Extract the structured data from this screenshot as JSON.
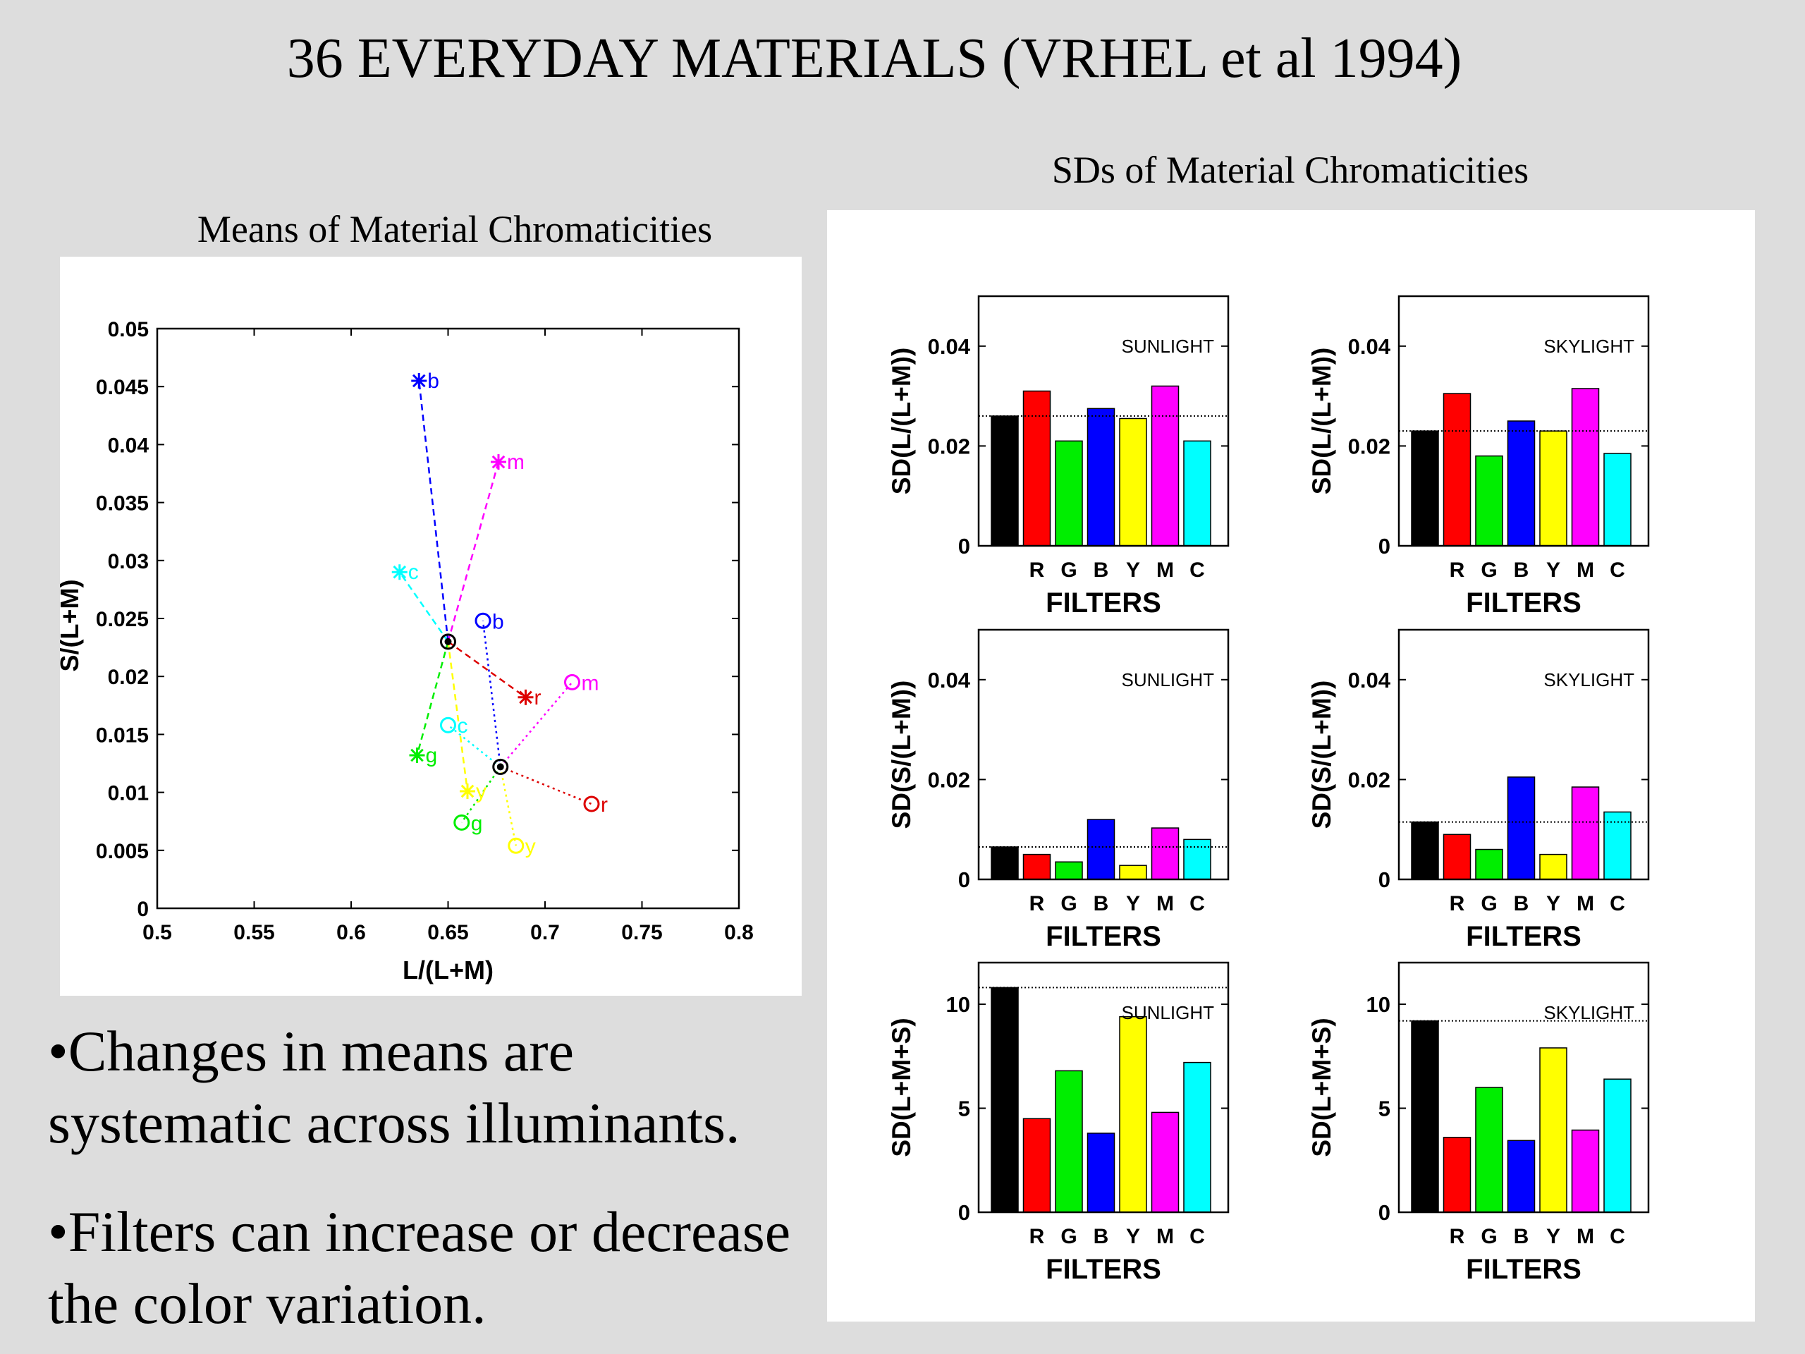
{
  "slide": {
    "title": "36 EVERYDAY MATERIALS (VRHEL et al 1994)",
    "bullets": [
      "•Changes in means are systematic across illuminants.",
      "•Filters can increase or decrease the color variation."
    ]
  },
  "left_panel": {
    "title": "Means of Material Chromaticities"
  },
  "right_panel": {
    "title": "SDs of Material Chromaticities"
  },
  "colors": {
    "R": "#ff0000",
    "G": "#00ee00",
    "B": "#0000ff",
    "Y": "#ffff00",
    "M": "#ff00ff",
    "C": "#00ffff",
    "K": "#000000",
    "r_line": "#dd0000"
  },
  "chart_data": [
    {
      "type": "scatter",
      "title": "Means of Material Chromaticities",
      "xlabel": "L/(L+M)",
      "ylabel": "S/(L+M)",
      "xlim": [
        0.5,
        0.8
      ],
      "ylim": [
        0,
        0.05
      ],
      "xticks": [
        "0.5",
        "0.55",
        "0.6",
        "0.65",
        "0.7",
        "0.75",
        "0.8"
      ],
      "yticks": [
        "0",
        "0.005",
        "0.01",
        "0.015",
        "0.02",
        "0.025",
        "0.03",
        "0.035",
        "0.04",
        "0.045",
        "0.05"
      ],
      "centers": [
        {
          "name": "sunlight",
          "x": 0.65,
          "y": 0.023
        },
        {
          "name": "skylight",
          "x": 0.677,
          "y": 0.0122
        }
      ],
      "points": [
        {
          "label": "b",
          "marker": "star",
          "color": "#0000ff",
          "x": 0.635,
          "y": 0.0455,
          "center": 0,
          "dash": "dashed"
        },
        {
          "label": "m",
          "marker": "star",
          "color": "#ff00ff",
          "x": 0.676,
          "y": 0.0385,
          "center": 0,
          "dash": "dashed"
        },
        {
          "label": "c",
          "marker": "star",
          "color": "#00ffff",
          "x": 0.625,
          "y": 0.029,
          "center": 0,
          "dash": "dashed"
        },
        {
          "label": "r",
          "marker": "star",
          "color": "#dd0000",
          "x": 0.69,
          "y": 0.0182,
          "center": 0,
          "dash": "dashed"
        },
        {
          "label": "g",
          "marker": "star",
          "color": "#00ee00",
          "x": 0.634,
          "y": 0.0132,
          "center": 0,
          "dash": "dashed"
        },
        {
          "label": "y",
          "marker": "star",
          "color": "#ffff00",
          "x": 0.66,
          "y": 0.0101,
          "center": 0,
          "dash": "dashed"
        },
        {
          "label": "b",
          "marker": "circle",
          "color": "#0000ff",
          "x": 0.668,
          "y": 0.0248,
          "center": 1,
          "dash": "dotted"
        },
        {
          "label": "m",
          "marker": "circle",
          "color": "#ff00ff",
          "x": 0.714,
          "y": 0.0195,
          "center": 1,
          "dash": "dotted"
        },
        {
          "label": "c",
          "marker": "circle",
          "color": "#00ffff",
          "x": 0.65,
          "y": 0.0158,
          "center": 1,
          "dash": "dotted"
        },
        {
          "label": "r",
          "marker": "circle",
          "color": "#dd0000",
          "x": 0.724,
          "y": 0.009,
          "center": 1,
          "dash": "dotted"
        },
        {
          "label": "g",
          "marker": "circle",
          "color": "#00ee00",
          "x": 0.657,
          "y": 0.0074,
          "center": 1,
          "dash": "dotted"
        },
        {
          "label": "y",
          "marker": "circle",
          "color": "#ffff00",
          "x": 0.685,
          "y": 0.0054,
          "center": 1,
          "dash": "dotted"
        }
      ]
    },
    {
      "type": "bar",
      "annotation": "SUNLIGHT",
      "ylabel": "SD(L/(L+M))",
      "xlabel": "FILTERS",
      "categories": [
        "",
        "R",
        "G",
        "B",
        "Y",
        "M",
        "C"
      ],
      "values": [
        0.026,
        0.031,
        0.021,
        0.0275,
        0.0255,
        0.032,
        0.021
      ],
      "colors": [
        "#000000",
        "#ff0000",
        "#00ee00",
        "#0000ff",
        "#ffff00",
        "#ff00ff",
        "#00ffff"
      ],
      "ylim": [
        0,
        0.05
      ],
      "yticks": [
        0,
        0.02,
        0.04
      ],
      "ytick_labels": [
        "0",
        "0.02",
        "0.04"
      ],
      "reference": 0.026
    },
    {
      "type": "bar",
      "annotation": "SKYLIGHT",
      "ylabel": "SD(L/(L+M))",
      "xlabel": "FILTERS",
      "categories": [
        "",
        "R",
        "G",
        "B",
        "Y",
        "M",
        "C"
      ],
      "values": [
        0.023,
        0.0305,
        0.018,
        0.025,
        0.023,
        0.0315,
        0.0185
      ],
      "colors": [
        "#000000",
        "#ff0000",
        "#00ee00",
        "#0000ff",
        "#ffff00",
        "#ff00ff",
        "#00ffff"
      ],
      "ylim": [
        0,
        0.05
      ],
      "yticks": [
        0,
        0.02,
        0.04
      ],
      "ytick_labels": [
        "0",
        "0.02",
        "0.04"
      ],
      "reference": 0.023
    },
    {
      "type": "bar",
      "annotation": "SUNLIGHT",
      "ylabel": "SD(S/(L+M))",
      "xlabel": "FILTERS",
      "categories": [
        "",
        "R",
        "G",
        "B",
        "Y",
        "M",
        "C"
      ],
      "values": [
        0.0065,
        0.005,
        0.0035,
        0.012,
        0.0028,
        0.0103,
        0.008
      ],
      "colors": [
        "#000000",
        "#ff0000",
        "#00ee00",
        "#0000ff",
        "#ffff00",
        "#ff00ff",
        "#00ffff"
      ],
      "ylim": [
        0,
        0.05
      ],
      "yticks": [
        0,
        0.02,
        0.04
      ],
      "ytick_labels": [
        "0",
        "0.02",
        "0.04"
      ],
      "reference": 0.0065
    },
    {
      "type": "bar",
      "annotation": "SKYLIGHT",
      "ylabel": "SD(S/(L+M))",
      "xlabel": "FILTERS",
      "categories": [
        "",
        "R",
        "G",
        "B",
        "Y",
        "M",
        "C"
      ],
      "values": [
        0.0115,
        0.009,
        0.006,
        0.0205,
        0.005,
        0.0185,
        0.0135
      ],
      "colors": [
        "#000000",
        "#ff0000",
        "#00ee00",
        "#0000ff",
        "#ffff00",
        "#ff00ff",
        "#00ffff"
      ],
      "ylim": [
        0,
        0.05
      ],
      "yticks": [
        0,
        0.02,
        0.04
      ],
      "ytick_labels": [
        "0",
        "0.02",
        "0.04"
      ],
      "reference": 0.0115
    },
    {
      "type": "bar",
      "annotation": "SUNLIGHT",
      "ylabel": "SD(L+M+S)",
      "xlabel": "FILTERS",
      "categories": [
        "",
        "R",
        "G",
        "B",
        "Y",
        "M",
        "C"
      ],
      "values": [
        10.8,
        4.5,
        6.8,
        3.8,
        9.4,
        4.8,
        7.2
      ],
      "colors": [
        "#000000",
        "#ff0000",
        "#00ee00",
        "#0000ff",
        "#ffff00",
        "#ff00ff",
        "#00ffff"
      ],
      "ylim": [
        0,
        12
      ],
      "yticks": [
        0,
        5,
        10
      ],
      "ytick_labels": [
        "0",
        "5",
        "10"
      ],
      "reference": 10.8
    },
    {
      "type": "bar",
      "annotation": "SKYLIGHT",
      "ylabel": "SD(L+M+S)",
      "xlabel": "FILTERS",
      "categories": [
        "",
        "R",
        "G",
        "B",
        "Y",
        "M",
        "C"
      ],
      "values": [
        9.2,
        3.6,
        6.0,
        3.45,
        7.9,
        3.95,
        6.4
      ],
      "colors": [
        "#000000",
        "#ff0000",
        "#00ee00",
        "#0000ff",
        "#ffff00",
        "#ff00ff",
        "#00ffff"
      ],
      "ylim": [
        0,
        12
      ],
      "yticks": [
        0,
        5,
        10
      ],
      "ytick_labels": [
        "0",
        "5",
        "10"
      ],
      "reference": 9.2
    }
  ]
}
